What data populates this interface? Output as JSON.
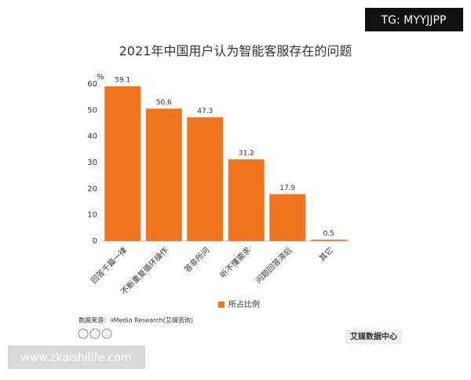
{
  "chart_data": {
    "type": "bar",
    "title": "2021年中国用户认为智能客服存在的问题",
    "y_label": "%",
    "categories": [
      "回答千篇一律",
      "不断重复循环操作",
      "答非所问",
      "听不懂需求",
      "问题回答滞后",
      "其它"
    ],
    "series": [
      {
        "name": "所占比例",
        "color": "#f07521",
        "values": [
          59.1,
          50.6,
          47.3,
          31.2,
          17.9,
          0.5
        ]
      }
    ],
    "ylim": [
      0,
      60
    ],
    "yticks": [
      0,
      10,
      20,
      30,
      40,
      50,
      60
    ],
    "grid": false,
    "source": "数据来源：iiMedia Research(艾媒咨询)",
    "logo": "艾媒数据中心"
  },
  "watermarks": {
    "top": "TG: MYYJJPP",
    "bottom": "www.zkaishilife.com"
  }
}
